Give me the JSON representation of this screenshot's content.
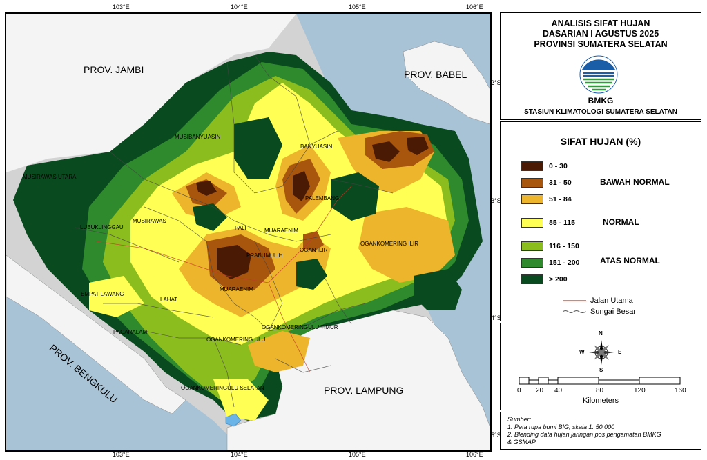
{
  "map": {
    "lon_ticks": [
      "103°E",
      "104°E",
      "105°E",
      "106°E"
    ],
    "lat_ticks": [
      "2°S",
      "3°S",
      "4°S",
      "5°S"
    ],
    "provinces": [
      "PROV. JAMBI",
      "PROV. BABEL",
      "PROV. BENGKULU",
      "PROV. LAMPUNG"
    ],
    "regencies": [
      "MUSIBANYUASIN",
      "BANYUASIN",
      "MUSIRAWAS UTARA",
      "MUSIRAWAS",
      "LUBUKLINGGAU",
      "PALEMBANG",
      "PALI",
      "MUARAENIM",
      "PRABUMULIH",
      "OGAN ILIR",
      "OGANKOMERING ILIR",
      "EMPAT LAWANG",
      "LAHAT",
      "MUARAENIM",
      "PAGARALAM",
      "OGANKOMERING ULU",
      "OGANKOMERINGULU TIMUR",
      "OGANKOMERINGULU SELATAN"
    ]
  },
  "header": {
    "title_lines": [
      "ANALISIS SIFAT HUJAN",
      "DASARIAN I AGUSTUS 2025",
      "PROVINSI SUMATERA SELATAN"
    ],
    "agency": "BMKG",
    "station": "STASIUN KLIMATOLOGI SUMATERA SELATAN"
  },
  "legend": {
    "title": "SIFAT HUJAN (%)",
    "classes": [
      {
        "label": "0 - 30",
        "color": "#4a1a05"
      },
      {
        "label": "31 - 50",
        "color": "#a8560d"
      },
      {
        "label": "51 - 84",
        "color": "#edb52b"
      },
      {
        "label": "85 - 115",
        "color": "#ffff54"
      },
      {
        "label": "116 - 150",
        "color": "#8cbd1e"
      },
      {
        "label": "151 - 200",
        "color": "#2f8a2d"
      },
      {
        "label": "> 200",
        "color": "#0a4a1f"
      }
    ],
    "categories": [
      "BAWAH NORMAL",
      "NORMAL",
      "ATAS NORMAL"
    ],
    "lines": [
      {
        "label": "Jalan Utama",
        "color": "#c0392b"
      },
      {
        "label": "Sungai Besar",
        "color": "#555555"
      }
    ]
  },
  "scale": {
    "compass": [
      "N",
      "S",
      "W",
      "E"
    ],
    "ticks": [
      "0",
      "20",
      "40",
      "80",
      "120",
      "160"
    ],
    "unit": "Kilometers"
  },
  "source": {
    "heading": "Sumber:",
    "lines": [
      "1. Peta rupa bumi BIG, skala 1: 50.000",
      "2. Blending data hujan jaringan pos pengamatan BMKG",
      "& GSMAP"
    ]
  }
}
